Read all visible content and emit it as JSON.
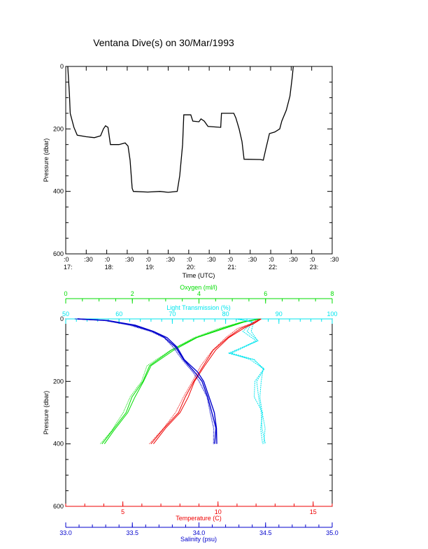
{
  "title": "Ventana Dive(s) on 30/Mar/1993",
  "colors": {
    "axis": "#000000",
    "temperature": "#ee0000",
    "oxygen": "#00dd00",
    "light": "#00e5ee",
    "salinity": "#0000cc"
  },
  "chart_data": [
    {
      "type": "line",
      "title": "Ventana Dive(s) on 30/Mar/1993",
      "xlabel": "Time (UTC)",
      "ylabel": "Pressure (dbar)",
      "x_unit": "hours UTC",
      "xlim": [
        17.0,
        23.5
      ],
      "ylim": [
        600,
        0
      ],
      "y_ticks": [
        0,
        200,
        400,
        600
      ],
      "x_tick_labels": [
        {
          "x": 17.0,
          "top": ":0",
          "bottom": "17:"
        },
        {
          "x": 17.5,
          "top": ":30",
          "bottom": ""
        },
        {
          "x": 18.0,
          "top": ":0",
          "bottom": "18:"
        },
        {
          "x": 18.5,
          "top": ":30",
          "bottom": ""
        },
        {
          "x": 19.0,
          "top": ":0",
          "bottom": "19:"
        },
        {
          "x": 19.5,
          "top": ":30",
          "bottom": ""
        },
        {
          "x": 20.0,
          "top": ":0",
          "bottom": "20:"
        },
        {
          "x": 20.5,
          "top": ":30",
          "bottom": ""
        },
        {
          "x": 21.0,
          "top": ":0",
          "bottom": "21:"
        },
        {
          "x": 21.5,
          "top": ":30",
          "bottom": ""
        },
        {
          "x": 22.0,
          "top": ":0",
          "bottom": "22:"
        },
        {
          "x": 22.5,
          "top": ":30",
          "bottom": ""
        },
        {
          "x": 23.0,
          "top": ":0",
          "bottom": "23:"
        },
        {
          "x": 23.5,
          "top": ":30",
          "bottom": ""
        }
      ],
      "series": [
        {
          "points": [
            [
              17.05,
              0
            ],
            [
              17.09,
              90
            ],
            [
              17.11,
              150
            ],
            [
              17.2,
              195
            ],
            [
              17.28,
              220
            ],
            [
              17.5,
              225
            ],
            [
              17.7,
              228
            ],
            [
              17.85,
              222
            ],
            [
              17.92,
              200
            ],
            [
              17.97,
              190
            ],
            [
              18.03,
              195
            ],
            [
              18.09,
              250
            ],
            [
              18.3,
              250
            ],
            [
              18.45,
              245
            ],
            [
              18.52,
              255
            ],
            [
              18.57,
              300
            ],
            [
              18.62,
              390
            ],
            [
              18.65,
              400
            ],
            [
              19.0,
              402
            ],
            [
              19.3,
              400
            ],
            [
              19.5,
              403
            ],
            [
              19.72,
              400
            ],
            [
              19.78,
              350
            ],
            [
              19.85,
              250
            ],
            [
              19.88,
              155
            ],
            [
              20.05,
              155
            ],
            [
              20.1,
              175
            ],
            [
              20.25,
              177
            ],
            [
              20.3,
              168
            ],
            [
              20.38,
              175
            ],
            [
              20.47,
              192
            ],
            [
              20.78,
              195
            ],
            [
              20.8,
              150
            ],
            [
              21.1,
              150
            ],
            [
              21.15,
              165
            ],
            [
              21.23,
              200
            ],
            [
              21.3,
              240
            ],
            [
              21.35,
              297
            ],
            [
              21.75,
              298
            ],
            [
              21.82,
              300
            ],
            [
              21.88,
              265
            ],
            [
              21.97,
              215
            ],
            [
              22.1,
              210
            ],
            [
              22.22,
              200
            ],
            [
              22.27,
              175
            ],
            [
              22.38,
              140
            ],
            [
              22.47,
              95
            ],
            [
              22.53,
              30
            ],
            [
              22.55,
              0
            ]
          ]
        }
      ]
    },
    {
      "type": "line",
      "ylabel": "Pressure (dbar)",
      "ylim": [
        600,
        0
      ],
      "y_ticks": [
        0,
        200,
        400,
        600
      ],
      "axes": {
        "oxygen": {
          "label": "Oxygen (ml/l)",
          "range": [
            0,
            8
          ],
          "ticks": [
            0,
            2,
            4,
            6,
            8
          ],
          "color": "#00dd00"
        },
        "light": {
          "label": "Light Transmission (%)",
          "range": [
            50,
            100
          ],
          "ticks": [
            50,
            60,
            70,
            80,
            90,
            100
          ],
          "color": "#00e5ee"
        },
        "temperature": {
          "label": "Temperature (C)",
          "range": [
            2,
            16
          ],
          "ticks": [
            5,
            10,
            15
          ],
          "color": "#ee0000"
        },
        "salinity": {
          "label": "Salinity (psu)",
          "range": [
            33.0,
            35.0
          ],
          "ticks": [
            "33.0",
            "33.5",
            "34.0",
            "34.5",
            "35.0"
          ],
          "color": "#0000cc"
        }
      },
      "series": [
        {
          "axis": "oxygen",
          "color": "#00dd00",
          "points": [
            [
              5.8,
              0
            ],
            [
              5.3,
              10
            ],
            [
              4.7,
              30
            ],
            [
              3.9,
              60
            ],
            [
              3.2,
              100
            ],
            [
              2.5,
              150
            ],
            [
              2.3,
              200
            ],
            [
              2.0,
              250
            ],
            [
              1.8,
              300
            ],
            [
              1.4,
              360
            ],
            [
              1.1,
              400
            ]
          ]
        },
        {
          "axis": "light",
          "color": "#00e5ee",
          "points": [
            [
              82,
              0
            ],
            [
              85,
              10
            ],
            [
              84,
              40
            ],
            [
              86,
              70
            ],
            [
              81,
              110
            ],
            [
              85,
              130
            ],
            [
              87,
              160
            ],
            [
              86,
              200
            ],
            [
              86,
              250
            ],
            [
              87,
              300
            ],
            [
              87,
              350
            ],
            [
              87,
              400
            ]
          ]
        },
        {
          "axis": "temperature",
          "color": "#ee0000",
          "points": [
            [
              12.2,
              0
            ],
            [
              11.8,
              15
            ],
            [
              11.2,
              30
            ],
            [
              10.5,
              60
            ],
            [
              9.8,
              100
            ],
            [
              9.2,
              150
            ],
            [
              8.7,
              200
            ],
            [
              8.3,
              250
            ],
            [
              7.9,
              300
            ],
            [
              7.2,
              350
            ],
            [
              6.5,
              400
            ]
          ]
        },
        {
          "axis": "salinity",
          "color": "#0000cc",
          "points": [
            [
              33.08,
              0
            ],
            [
              33.3,
              5
            ],
            [
              33.5,
              20
            ],
            [
              33.65,
              40
            ],
            [
              33.75,
              60
            ],
            [
              33.82,
              90
            ],
            [
              33.88,
              130
            ],
            [
              33.97,
              170
            ],
            [
              34.02,
              200
            ],
            [
              34.07,
              250
            ],
            [
              34.1,
              300
            ],
            [
              34.12,
              350
            ],
            [
              34.12,
              400
            ]
          ]
        }
      ]
    }
  ]
}
